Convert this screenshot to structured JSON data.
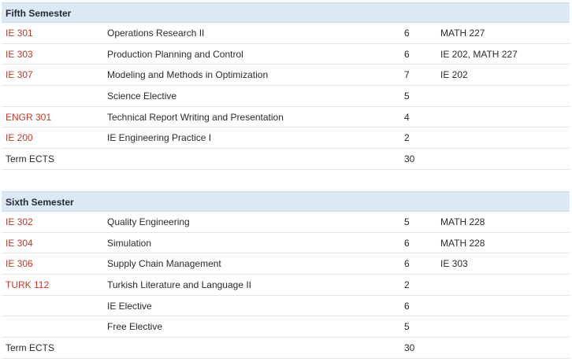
{
  "semesters": [
    {
      "title": "Fifth Semester",
      "courses": [
        {
          "code": "IE 301",
          "name": "Operations Research II",
          "ects": "6",
          "prereq": "MATH 227"
        },
        {
          "code": "IE 303",
          "name": "Production Planning and Control",
          "ects": "6",
          "prereq": "IE 202, MATH 227"
        },
        {
          "code": "IE 307",
          "name": "Modeling and Methods in Optimization",
          "ects": "7",
          "prereq": "IE 202"
        },
        {
          "code": "",
          "name": "Science Elective",
          "ects": "5",
          "prereq": ""
        },
        {
          "code": "ENGR 301",
          "name": "Technical Report Writing and Presentation",
          "ects": "4",
          "prereq": ""
        },
        {
          "code": "IE 200",
          "name": "IE Engineering Practice I",
          "ects": "2",
          "prereq": ""
        }
      ],
      "total_label": "Term ECTS",
      "total_ects": "30"
    },
    {
      "title": "Sixth Semester",
      "courses": [
        {
          "code": "IE 302",
          "name": "Quality Engineering",
          "ects": "5",
          "prereq": "MATH 228"
        },
        {
          "code": "IE 304",
          "name": "Simulation",
          "ects": "6",
          "prereq": "MATH 228"
        },
        {
          "code": "IE 306",
          "name": "Supply Chain Management",
          "ects": "6",
          "prereq": "IE 303"
        },
        {
          "code": "TURK 112",
          "name": "Turkish Literature and Language II",
          "ects": "2",
          "prereq": ""
        },
        {
          "code": "",
          "name": "IE Elective",
          "ects": "6",
          "prereq": ""
        },
        {
          "code": "",
          "name": "Free Elective",
          "ects": "5",
          "prereq": ""
        }
      ],
      "total_label": "Term ECTS",
      "total_ects": "30"
    }
  ]
}
